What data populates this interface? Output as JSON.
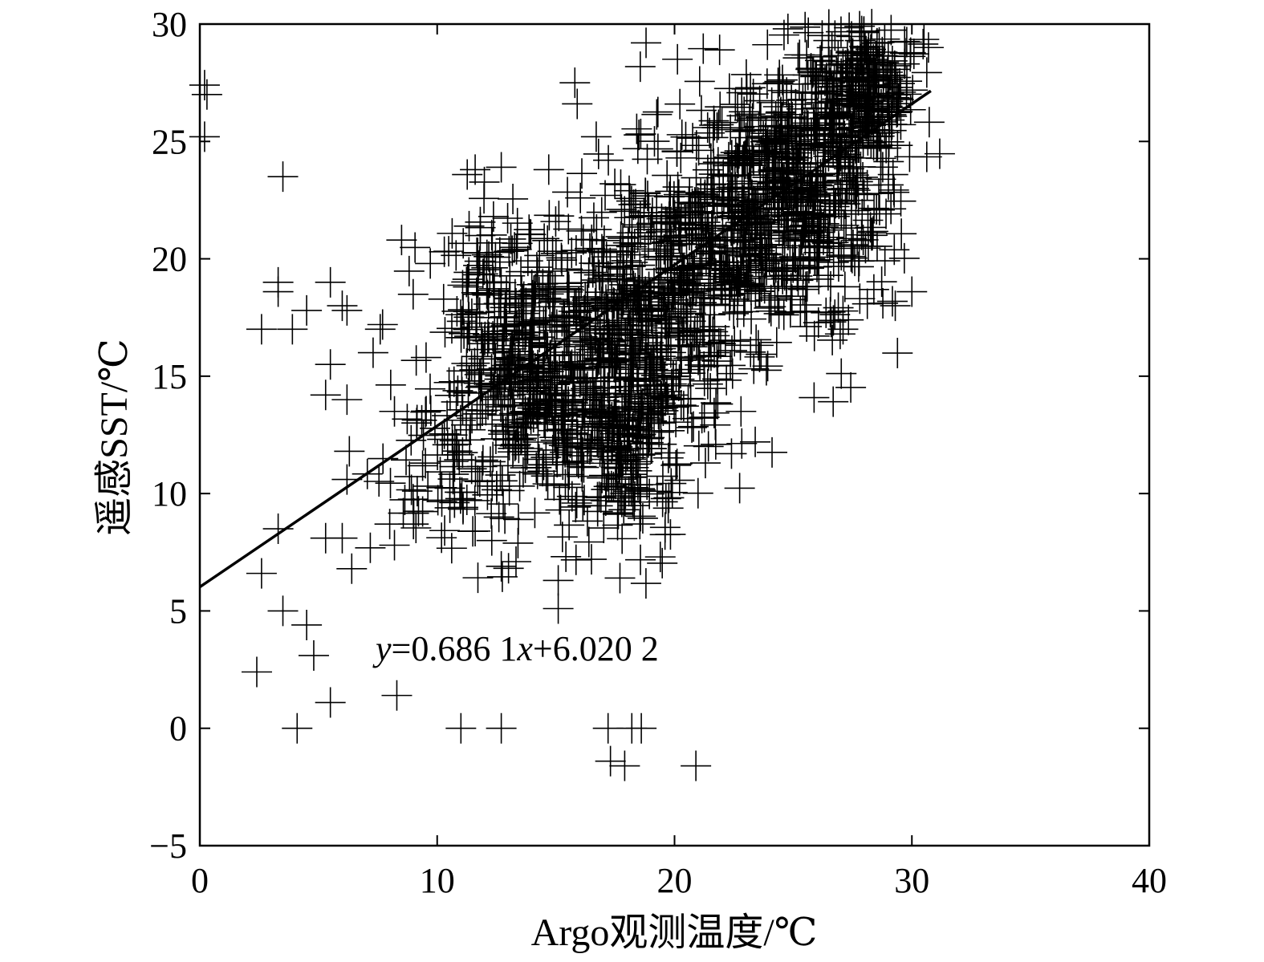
{
  "chart_data": {
    "type": "scatter",
    "title": "",
    "xlabel": "Argo观测温度/℃",
    "ylabel": "遥感SST/℃",
    "xlim": [
      0,
      40
    ],
    "ylim": [
      -5,
      30
    ],
    "x_ticks": [
      "0",
      "10",
      "20",
      "30",
      "40"
    ],
    "y_ticks": [
      "−5",
      "0",
      "5",
      "10",
      "15",
      "20",
      "25",
      "30"
    ],
    "x_tick_values": [
      0,
      10,
      20,
      30,
      40
    ],
    "y_tick_values": [
      -5,
      0,
      5,
      10,
      15,
      20,
      25,
      30
    ],
    "grid": false,
    "marker": "plus",
    "color": "#000000",
    "fit_line": {
      "slope": 0.6861,
      "intercept": 6.0202,
      "x_range": [
        0,
        30.8
      ],
      "equation_label": "y=0.686 1x+6.020 2"
    },
    "clusters": [
      {
        "cx": 13.0,
        "cy": 17.5,
        "sx": 1.6,
        "sy": 2.2,
        "n": 260
      },
      {
        "cx": 14.5,
        "cy": 13.5,
        "sx": 1.6,
        "sy": 2.0,
        "n": 240
      },
      {
        "cx": 18.0,
        "cy": 12.5,
        "sx": 1.2,
        "sy": 2.2,
        "n": 260
      },
      {
        "cx": 19.0,
        "cy": 17.5,
        "sx": 2.2,
        "sy": 2.5,
        "n": 420
      },
      {
        "cx": 22.0,
        "cy": 21.0,
        "sx": 2.2,
        "sy": 2.2,
        "n": 360
      },
      {
        "cx": 25.0,
        "cy": 24.0,
        "sx": 1.8,
        "sy": 2.0,
        "n": 360
      },
      {
        "cx": 28.0,
        "cy": 27.0,
        "sx": 1.2,
        "sy": 1.6,
        "n": 300
      },
      {
        "cx": 26.5,
        "cy": 20.0,
        "sx": 1.5,
        "sy": 2.0,
        "n": 120
      },
      {
        "cx": 10.5,
        "cy": 11.0,
        "sx": 1.5,
        "sy": 2.0,
        "n": 90
      }
    ],
    "outlier_points": [
      [
        0.2,
        27.4
      ],
      [
        0.3,
        27.0
      ],
      [
        0.2,
        25.2
      ],
      [
        3.5,
        23.5
      ],
      [
        3.3,
        19.0
      ],
      [
        3.3,
        18.6
      ],
      [
        2.6,
        17.0
      ],
      [
        3.9,
        17.0
      ],
      [
        4.5,
        17.8
      ],
      [
        5.5,
        19.0
      ],
      [
        6.0,
        18.0
      ],
      [
        6.2,
        17.8
      ],
      [
        5.5,
        15.5
      ],
      [
        5.3,
        14.2
      ],
      [
        6.2,
        14.0
      ],
      [
        8.5,
        20.8
      ],
      [
        7.7,
        17.2
      ],
      [
        8.2,
        13.5
      ],
      [
        6.3,
        11.8
      ],
      [
        6.2,
        10.6
      ],
      [
        3.3,
        8.5
      ],
      [
        2.6,
        6.6
      ],
      [
        5.3,
        8.1
      ],
      [
        6.0,
        8.1
      ],
      [
        6.4,
        6.8
      ],
      [
        3.5,
        5.0
      ],
      [
        4.5,
        4.4
      ],
      [
        4.8,
        3.1
      ],
      [
        2.4,
        2.4
      ],
      [
        5.5,
        1.1
      ],
      [
        4.1,
        0.0
      ],
      [
        8.3,
        1.4
      ],
      [
        11.0,
        0.0
      ],
      [
        12.7,
        0.0
      ],
      [
        17.2,
        0.0
      ],
      [
        18.2,
        0.0
      ],
      [
        18.6,
        0.0
      ],
      [
        17.3,
        -1.4
      ],
      [
        17.9,
        -1.6
      ],
      [
        20.9,
        -1.6
      ],
      [
        15.1,
        6.3
      ],
      [
        15.1,
        5.1
      ],
      [
        12.7,
        6.9
      ],
      [
        16.5,
        7.2
      ],
      [
        17.7,
        6.4
      ],
      [
        19.4,
        7.3
      ],
      [
        15.2,
        9.3
      ],
      [
        15.4,
        10.4
      ],
      [
        22.4,
        11.7
      ],
      [
        21.3,
        11.3
      ],
      [
        23.4,
        12.2
      ],
      [
        22.8,
        13.5
      ],
      [
        27.1,
        17.0
      ],
      [
        29.3,
        18.0
      ],
      [
        30.0,
        18.6
      ],
      [
        28.3,
        21.0
      ],
      [
        30.7,
        29.0
      ],
      [
        18.8,
        29.2
      ],
      [
        21.9,
        28.9
      ],
      [
        15.8,
        27.5
      ],
      [
        15.9,
        26.6
      ],
      [
        16.7,
        25.2
      ],
      [
        11.6,
        23.8
      ],
      [
        12.7,
        23.9
      ],
      [
        14.7,
        23.8
      ],
      [
        10.3,
        20.3
      ],
      [
        7.6,
        17.0
      ],
      [
        7.3,
        16.0
      ],
      [
        8.0,
        8.7
      ],
      [
        8.2,
        7.8
      ],
      [
        9.0,
        8.7
      ],
      [
        11.6,
        8.4
      ],
      [
        12.3,
        8.0
      ],
      [
        12.6,
        9.0
      ]
    ]
  }
}
